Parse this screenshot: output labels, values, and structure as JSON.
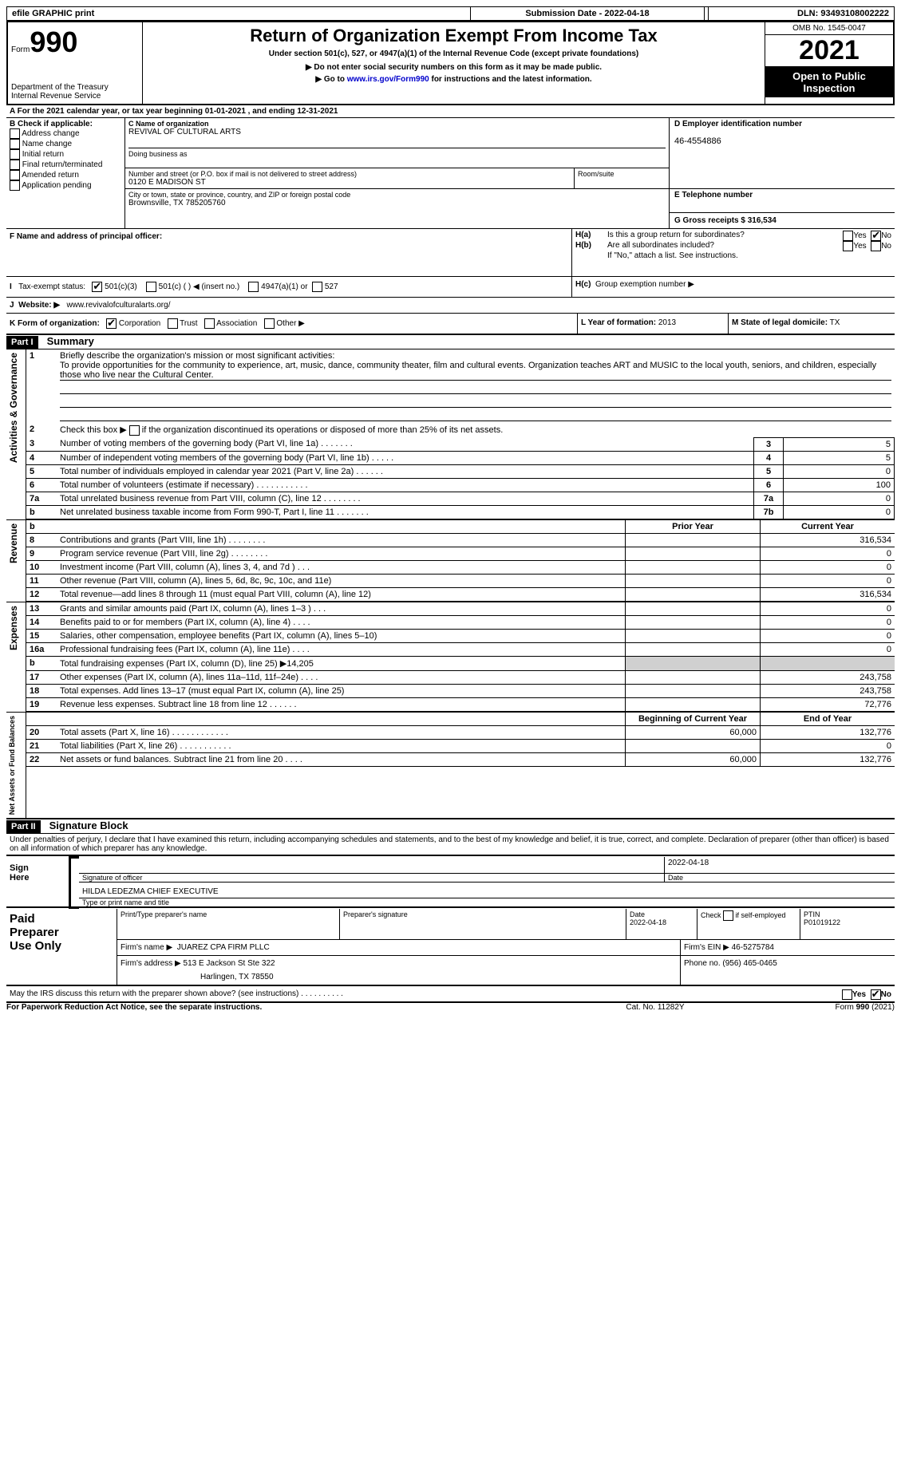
{
  "topbar": {
    "efile": "efile GRAPHIC print",
    "submission": "Submission Date - 2022-04-18",
    "dln": "DLN: 93493108002222"
  },
  "header": {
    "form_word": "Form",
    "form_num": "990",
    "dept1": "Department of the Treasury",
    "dept2": "Internal Revenue Service",
    "title": "Return of Organization Exempt From Income Tax",
    "subtitle": "Under section 501(c), 527, or 4947(a)(1) of the Internal Revenue Code (except private foundations)",
    "warn1": "▶ Do not enter social security numbers on this form as it may be made public.",
    "warn2_pre": "▶ Go to ",
    "warn2_link": "www.irs.gov/Form990",
    "warn2_post": " for instructions and the latest information.",
    "omb": "OMB No. 1545-0047",
    "year": "2021",
    "inspect1": "Open to Public",
    "inspect2": "Inspection"
  },
  "A": {
    "line": "A For the 2021 calendar year, or tax year beginning 01-01-2021    , and ending 12-31-2021"
  },
  "B": {
    "label": "B Check if applicable:",
    "opt1": "Address change",
    "opt2": "Name change",
    "opt3": "Initial return",
    "opt4": "Final return/terminated",
    "opt5": "Amended return",
    "opt6": "Application pending"
  },
  "C": {
    "name_lbl": "C Name of organization",
    "name": "REVIVAL OF CULTURAL ARTS",
    "dba_lbl": "Doing business as",
    "street_lbl": "Number and street (or P.O. box if mail is not delivered to street address)",
    "room_lbl": "Room/suite",
    "street": "0120 E MADISON ST",
    "city_lbl": "City or town, state or province, country, and ZIP or foreign postal code",
    "city": "Brownsville, TX  785205760"
  },
  "D": {
    "lbl": "D Employer identification number",
    "val": "46-4554886"
  },
  "E": {
    "lbl": "E Telephone number"
  },
  "G": {
    "lbl": "G Gross receipts $",
    "val": "316,534"
  },
  "F": {
    "lbl": "F Name and address of principal officer:"
  },
  "H": {
    "a": "Is this a group return for subordinates?",
    "b": "Are all subordinates included?",
    "b_note": "If \"No,\" attach a list. See instructions.",
    "c": "Group exemption number ▶",
    "yes": "Yes",
    "no": "No"
  },
  "I": {
    "lbl": "Tax-exempt status:",
    "o1": "501(c)(3)",
    "o2": "501(c) (   ) ◀ (insert no.)",
    "o3": "4947(a)(1) or",
    "o4": "527"
  },
  "J": {
    "lbl": "Website: ▶",
    "val": "www.revivalofculturalarts.org/"
  },
  "K": {
    "lbl": "K Form of organization:",
    "o1": "Corporation",
    "o2": "Trust",
    "o3": "Association",
    "o4": "Other ▶"
  },
  "L": {
    "lbl": "L Year of formation:",
    "val": "2013"
  },
  "M": {
    "lbl": "M State of legal domicile:",
    "val": "TX"
  },
  "part1": {
    "hdr": "Part I",
    "title": "Summary",
    "l1_lbl": "Briefly describe the organization's mission or most significant activities:",
    "l1_txt": "To provide opportunities for the community to experience, art, music, dance, community theater, film and cultural events. Organization teaches ART and MUSIC to the local youth, seniors, and children, especially those who live near the Cultural Center.",
    "l2": "Check this box ▶         if the organization discontinued its operations or disposed of more than 25% of its net assets.",
    "rows": [
      {
        "n": "3",
        "t": "Number of voting members of the governing body (Part VI, line 1a)   .     .     .     .     .     .     .",
        "box": "3",
        "v": "5"
      },
      {
        "n": "4",
        "t": "Number of independent voting members of the governing body (Part VI, line 1b)   .     .     .     .     .",
        "box": "4",
        "v": "5"
      },
      {
        "n": "5",
        "t": "Total number of individuals employed in calendar year 2021 (Part V, line 2a)   .     .     .     .     .     .",
        "box": "5",
        "v": "0"
      },
      {
        "n": "6",
        "t": "Total number of volunteers (estimate if necessary)    .     .     .     .     .     .     .     .     .     .     .",
        "box": "6",
        "v": "100"
      },
      {
        "n": "7a",
        "t": "Total unrelated business revenue from Part VIII, column (C), line 12   .     .     .     .     .     .     .     .",
        "box": "7a",
        "v": "0"
      },
      {
        "n": "b",
        "t": "Net unrelated business taxable income from Form 990-T, Part I, line 11   .     .     .     .     .     .     .",
        "box": "7b",
        "v": "0"
      }
    ],
    "colhdr_prior": "Prior Year",
    "colhdr_curr": "Current Year",
    "colhdr_beg": "Beginning of Current Year",
    "colhdr_end": "End of Year",
    "rev_rows": [
      {
        "n": "8",
        "t": "Contributions and grants (Part VIII, line 1h)   .     .     .     .     .     .     .     .",
        "p": "",
        "c": "316,534"
      },
      {
        "n": "9",
        "t": "Program service revenue (Part VIII, line 2g)   .     .     .     .     .     .     .     .",
        "p": "",
        "c": "0"
      },
      {
        "n": "10",
        "t": "Investment income (Part VIII, column (A), lines 3, 4, and 7d )    .     .     .",
        "p": "",
        "c": "0"
      },
      {
        "n": "11",
        "t": "Other revenue (Part VIII, column (A), lines 5, 6d, 8c, 9c, 10c, and 11e)",
        "p": "",
        "c": "0"
      },
      {
        "n": "12",
        "t": "Total revenue—add lines 8 through 11 (must equal Part VIII, column (A), line 12)",
        "p": "",
        "c": "316,534"
      }
    ],
    "exp_rows": [
      {
        "n": "13",
        "t": "Grants and similar amounts paid (Part IX, column (A), lines 1–3 )   .     .     .",
        "p": "",
        "c": "0"
      },
      {
        "n": "14",
        "t": "Benefits paid to or for members (Part IX, column (A), line 4)   .     .     .     .",
        "p": "",
        "c": "0"
      },
      {
        "n": "15",
        "t": "Salaries, other compensation, employee benefits (Part IX, column (A), lines 5–10)",
        "p": "",
        "c": "0"
      },
      {
        "n": "16a",
        "t": "Professional fundraising fees (Part IX, column (A), line 11e)   .     .     .     .",
        "p": "",
        "c": "0"
      },
      {
        "n": "b",
        "t": "Total fundraising expenses (Part IX, column (D), line 25) ▶14,205",
        "p": "GRAY",
        "c": "GRAY"
      },
      {
        "n": "17",
        "t": "Other expenses (Part IX, column (A), lines 11a–11d, 11f–24e)   .     .     .     .",
        "p": "",
        "c": "243,758"
      },
      {
        "n": "18",
        "t": "Total expenses. Add lines 13–17 (must equal Part IX, column (A), line 25)",
        "p": "",
        "c": "243,758"
      },
      {
        "n": "19",
        "t": "Revenue less expenses. Subtract line 18 from line 12   .     .     .     .     .     .",
        "p": "",
        "c": "72,776"
      }
    ],
    "na_rows": [
      {
        "n": "20",
        "t": "Total assets (Part X, line 16)   .     .     .     .     .     .     .     .     .     .     .     .",
        "p": "60,000",
        "c": "132,776"
      },
      {
        "n": "21",
        "t": "Total liabilities (Part X, line 26)   .     .     .     .     .     .     .     .     .     .     .",
        "p": "",
        "c": "0"
      },
      {
        "n": "22",
        "t": "Net assets or fund balances. Subtract line 21 from line 20   .     .     .     .",
        "p": "60,000",
        "c": "132,776"
      }
    ],
    "side_act": "Activities & Governance",
    "side_rev": "Revenue",
    "side_exp": "Expenses",
    "side_na": "Net Assets or Fund Balances"
  },
  "part2": {
    "hdr": "Part II",
    "title": "Signature Block",
    "decl": "Under penalties of perjury, I declare that I have examined this return, including accompanying schedules and statements, and to the best of my knowledge and belief, it is true, correct, and complete. Declaration of preparer (other than officer) is based on all information of which preparer has any knowledge."
  },
  "sign": {
    "lbl1": "Sign",
    "lbl2": "Here",
    "sig_lbl": "Signature of officer",
    "date_lbl": "Date",
    "date": "2022-04-18",
    "name": "HILDA LEDEZMA  CHIEF EXECUTIVE",
    "name_lbl": "Type or print name and title"
  },
  "prep": {
    "lbl1": "Paid",
    "lbl2": "Preparer",
    "lbl3": "Use Only",
    "c1": "Print/Type preparer's name",
    "c2": "Preparer's signature",
    "c3_lbl": "Date",
    "c3": "2022-04-18",
    "c4_lbl": "Check          if self-employed",
    "c5_lbl": "PTIN",
    "c5": "P01019122",
    "firm_lbl": "Firm's name     ▶",
    "firm": "JUAREZ CPA FIRM PLLC",
    "ein_lbl": "Firm's EIN ▶",
    "ein": "46-5275784",
    "addr_lbl": "Firm's address ▶",
    "addr1": "513 E Jackson St Ste 322",
    "addr2": "Harlingen, TX  78550",
    "phone_lbl": "Phone no.",
    "phone": "(956) 465-0465"
  },
  "footer": {
    "discuss": "May the IRS discuss this return with the preparer shown above? (see instructions)   .     .     .     .     .     .     .     .     .     .",
    "pra": "For Paperwork Reduction Act Notice, see the separate instructions.",
    "cat": "Cat. No. 11282Y",
    "form": "Form 990 (2021)"
  }
}
